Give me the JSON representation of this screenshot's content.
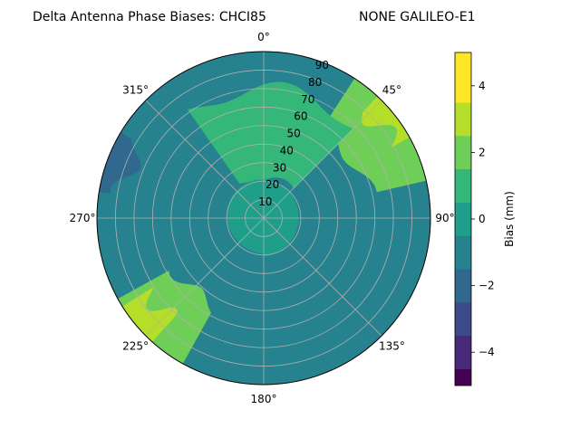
{
  "chart_data": {
    "type": "polar-contour",
    "title": "Delta Antenna Phase Biases: CHCI85",
    "subtitle": "NONE GALILEO-E1",
    "azimuth_labels": [
      "0°",
      "45°",
      "90°",
      "135°",
      "180°",
      "225°",
      "270°",
      "315°"
    ],
    "azimuths_deg": [
      0,
      45,
      90,
      135,
      180,
      225,
      270,
      315
    ],
    "radial_labels": [
      "10",
      "20",
      "30",
      "40",
      "50",
      "60",
      "70",
      "80",
      "90"
    ],
    "radial_values": [
      10,
      20,
      30,
      40,
      50,
      60,
      70,
      80,
      90
    ],
    "radial_range": [
      0,
      90
    ],
    "angular_direction": "clockwise",
    "zero_location": "top",
    "grid": true,
    "colorbar": {
      "label": "Bias (mm)",
      "ticks": [
        -4,
        -2,
        0,
        2,
        4
      ],
      "tick_labels": [
        "−4",
        "−2",
        "0",
        "2",
        "4"
      ],
      "range": [
        -5,
        5
      ],
      "levels": [
        -5,
        -4.5,
        -3.5,
        -2.5,
        -1.5,
        -0.5,
        0.5,
        1.5,
        2.5,
        3.5,
        4.5,
        5
      ],
      "colors": [
        "#440154",
        "#482878",
        "#3e4989",
        "#31688e",
        "#26828e",
        "#1f9e89",
        "#35b779",
        "#6ece58",
        "#b5de2b",
        "#fde725"
      ]
    },
    "bias_field_mm": [
      {
        "region": "north outer (az 330–20, r 78–90)",
        "value": -1
      },
      {
        "region": "northeast edge (az 35–75, r 60–90)",
        "value": 2
      },
      {
        "region": "northeast rim (az 45–60, r 82–90)",
        "value": 3
      },
      {
        "region": "east (az 80–140, r 40–90)",
        "value": -1
      },
      {
        "region": "south (az 160–210, r 50–90)",
        "value": -1
      },
      {
        "region": "southwest (az 210–240, r 55–90)",
        "value": 2
      },
      {
        "region": "southwest rim (az 225–235, r 75–90)",
        "value": 3
      },
      {
        "region": "west (az 250–310, r 40–90)",
        "value": -1
      },
      {
        "region": "west rim (az 280–300, r 80–90)",
        "value": -2
      },
      {
        "region": "north band (az 330–40, r 20–70)",
        "value": 1
      },
      {
        "region": "inner (r 0–20)",
        "value": 0
      }
    ]
  }
}
